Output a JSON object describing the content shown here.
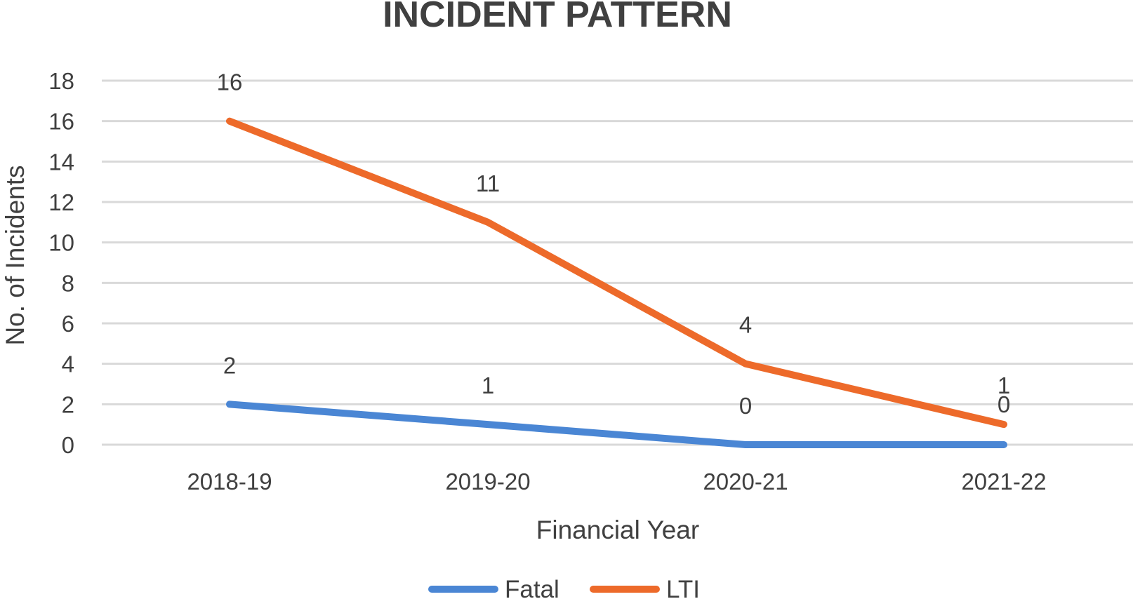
{
  "chart_data": {
    "type": "line",
    "title": "INCIDENT PATTERN",
    "xlabel": "Financial Year",
    "ylabel": "No. of Incidents",
    "categories": [
      "2018-19",
      "2019-20",
      "2020-21",
      "2021-22"
    ],
    "ylim": [
      0,
      18
    ],
    "yticks": [
      0,
      2,
      4,
      6,
      8,
      10,
      12,
      14,
      16,
      18
    ],
    "grid": true,
    "legend_position": "bottom",
    "series": [
      {
        "name": "Fatal",
        "values": [
          2,
          1,
          0,
          0
        ],
        "color": "#4a86d4"
      },
      {
        "name": "LTI",
        "values": [
          16,
          11,
          4,
          1
        ],
        "color": "#ed6a2a"
      }
    ]
  }
}
